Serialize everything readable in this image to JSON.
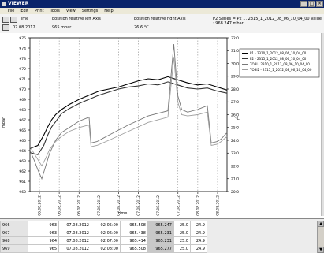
{
  "window": {
    "title": "VIEWER",
    "btn_min": "_",
    "btn_max": "□",
    "btn_close": "×"
  },
  "menu": [
    "File",
    "Edit",
    "Print",
    "Tools",
    "View",
    "Settings",
    "Help"
  ],
  "info": {
    "time_label": "Time",
    "date_value": "07.08.2012",
    "left_axis_label": "position relative left Axis",
    "left_axis_value": "965 mbar",
    "right_axis_label": "position relative right Axis",
    "right_axis_value": "26.6 °C",
    "series_info": "P2   Series = P2   ... 2315_1_2012_08_06_10_04_00 Value : 968.247 mbar"
  },
  "chart_data": {
    "type": "line",
    "ylabel_left": "mbar",
    "ylabel_right": "°C",
    "xlabel": "time",
    "y_left_ticks": [
      "975",
      "974",
      "973",
      "972",
      "971",
      "970",
      "969",
      "968",
      "967",
      "966",
      "965",
      "964",
      "963",
      "962",
      "961",
      "960"
    ],
    "y_right_ticks": [
      "32.0",
      "31.0",
      "30.0",
      "29.0",
      "28.0",
      "27.0",
      "26.0",
      "25.0",
      "24.0",
      "23.0",
      "22.0",
      "21.0",
      "20.0"
    ],
    "x_ticks": [
      "06.08.2012",
      "06.08.2012",
      "06.08.2012",
      "07.08.2012",
      "07.08.2012",
      "07.08.2012",
      "07.08.2012",
      "07.08.2012",
      "08.08.2012",
      "08.08.2012"
    ],
    "ylim_left": [
      960,
      975
    ],
    "ylim_right": [
      20,
      32
    ],
    "legend": [
      "P1      - 2310_1_2012_08_06_10_04_00",
      "P2      - 2315_1_2012_08_06_10_04_00",
      "TOBI    - 2310_1_2012_08_06_10_04_00",
      "TOBI2   - 2315_1_2012_08_06_10_04_00"
    ],
    "series": [
      {
        "name": "P1",
        "color": "#000000",
        "x": [
          0,
          0.04,
          0.07,
          0.09,
          0.11,
          0.13,
          0.16,
          0.2,
          0.25,
          0.3,
          0.35,
          0.4,
          0.45,
          0.5,
          0.55,
          0.6,
          0.65,
          0.7,
          0.75,
          0.8,
          0.85,
          0.9,
          0.95,
          1
        ],
        "y": [
          964.2,
          964.5,
          965.5,
          966.3,
          967.0,
          967.5,
          968.0,
          968.5,
          969.0,
          969.4,
          969.8,
          970.0,
          970.2,
          970.5,
          970.8,
          971.0,
          970.9,
          971.2,
          970.9,
          970.6,
          970.4,
          970.5,
          970.2,
          969.9
        ]
      },
      {
        "name": "P2",
        "color": "#333333",
        "x": [
          0,
          0.04,
          0.07,
          0.09,
          0.11,
          0.13,
          0.16,
          0.2,
          0.25,
          0.3,
          0.35,
          0.4,
          0.45,
          0.5,
          0.55,
          0.6,
          0.65,
          0.7,
          0.75,
          0.8,
          0.85,
          0.9,
          0.95,
          1
        ],
        "y": [
          963.8,
          963.6,
          964.5,
          965.5,
          966.3,
          966.8,
          967.6,
          968.1,
          968.6,
          969.0,
          969.4,
          969.7,
          970.0,
          970.2,
          970.3,
          970.5,
          970.4,
          970.7,
          970.4,
          970.1,
          970.0,
          970.1,
          969.8,
          969.6
        ]
      },
      {
        "name": "TOBI",
        "color": "#777777",
        "x": [
          0,
          0.02,
          0.04,
          0.06,
          0.08,
          0.1,
          0.13,
          0.16,
          0.2,
          0.25,
          0.3,
          0.31,
          0.34,
          0.4,
          0.5,
          0.6,
          0.7,
          0.73,
          0.75,
          0.77,
          0.8,
          0.85,
          0.9,
          0.92,
          0.95,
          0.97,
          1
        ],
        "y": [
          23.2,
          22.5,
          21.7,
          21.0,
          22.0,
          23.0,
          24.0,
          24.6,
          25.0,
          25.5,
          25.8,
          23.8,
          23.9,
          24.4,
          25.2,
          25.9,
          26.3,
          31.5,
          27.5,
          26.4,
          26.2,
          26.4,
          26.7,
          23.8,
          23.9,
          24.1,
          24.6
        ]
      },
      {
        "name": "TOBI2",
        "color": "#a0a0a0",
        "x": [
          0,
          0.02,
          0.04,
          0.06,
          0.08,
          0.1,
          0.13,
          0.16,
          0.2,
          0.25,
          0.3,
          0.31,
          0.34,
          0.4,
          0.5,
          0.6,
          0.7,
          0.73,
          0.75,
          0.77,
          0.8,
          0.85,
          0.9,
          0.92,
          0.95,
          0.97,
          1
        ],
        "y": [
          23.5,
          23.0,
          22.5,
          22.0,
          22.6,
          23.3,
          23.9,
          24.3,
          24.7,
          25.0,
          25.2,
          23.5,
          23.6,
          24.0,
          24.7,
          25.4,
          25.8,
          30.5,
          27.0,
          26.0,
          25.9,
          26.0,
          26.2,
          23.6,
          23.7,
          23.9,
          24.3
        ]
      }
    ]
  },
  "table": {
    "rows": [
      {
        "id": "966",
        "cells": [
          "963",
          "07.08.2012",
          "02:05:00",
          "965.508",
          "965.247",
          "25.0",
          "24.9"
        ]
      },
      {
        "id": "967",
        "cells": [
          "963",
          "07.08.2012",
          "02:06:00",
          "965.438",
          "965.231",
          "25.0",
          "24.9"
        ]
      },
      {
        "id": "968",
        "cells": [
          "964",
          "07.08.2012",
          "02:07:00",
          "965.414",
          "965.231",
          "25.0",
          "24.9"
        ]
      },
      {
        "id": "969",
        "cells": [
          "965",
          "07.08.2012",
          "02:08:00",
          "965.508",
          "965.277",
          "25.0",
          "24.9"
        ]
      }
    ]
  }
}
